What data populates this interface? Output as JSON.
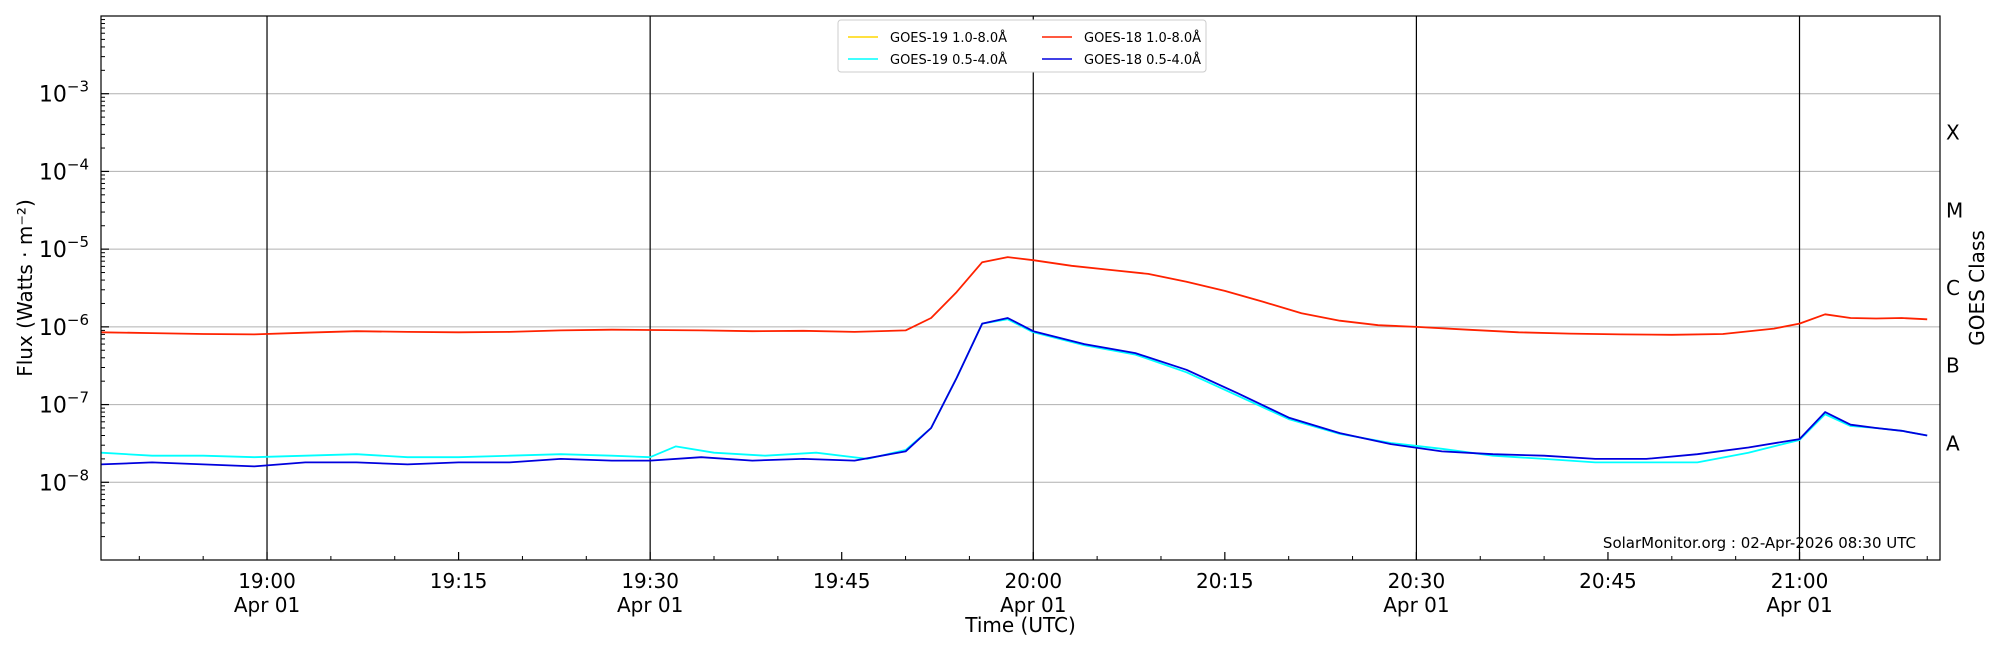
{
  "chart_data": {
    "type": "line",
    "xlabel": "Time (UTC)",
    "ylabel": "Flux (Watts · m⁻²)",
    "ylabel_right": "GOES Class",
    "yscale": "log",
    "xlim": [
      "2026-04-01 18:47",
      "2026-04-01 21:11"
    ],
    "ylim": [
      1e-09,
      0.01
    ],
    "grid": "horizontal at each decade",
    "vertical_lines": [
      "19:00",
      "19:30",
      "20:00",
      "20:30",
      "21:00"
    ],
    "legend_placement": "top-center",
    "credit": "SolarMonitor.org : 02-Apr-2026 08:30 UTC",
    "x_ticks": [
      {
        "time": "19:00",
        "line1": "19:00",
        "line2": "Apr 01"
      },
      {
        "time": "19:15",
        "line1": "19:15",
        "line2": ""
      },
      {
        "time": "19:30",
        "line1": "19:30",
        "line2": "Apr 01"
      },
      {
        "time": "19:45",
        "line1": "19:45",
        "line2": ""
      },
      {
        "time": "20:00",
        "line1": "20:00",
        "line2": "Apr 01"
      },
      {
        "time": "20:15",
        "line1": "20:15",
        "line2": ""
      },
      {
        "time": "20:30",
        "line1": "20:30",
        "line2": "Apr 01"
      },
      {
        "time": "20:45",
        "line1": "20:45",
        "line2": ""
      },
      {
        "time": "21:00",
        "line1": "21:00",
        "line2": "Apr 01"
      }
    ],
    "y_ticks": [
      {
        "value": 1e-08,
        "base": "10",
        "exp": "−8"
      },
      {
        "value": 1e-07,
        "base": "10",
        "exp": "−7"
      },
      {
        "value": 1e-06,
        "base": "10",
        "exp": "−6"
      },
      {
        "value": 1e-05,
        "base": "10",
        "exp": "−5"
      },
      {
        "value": 0.0001,
        "base": "10",
        "exp": "−4"
      },
      {
        "value": 0.001,
        "base": "10",
        "exp": "−3"
      }
    ],
    "goes_classes": [
      {
        "label": "A",
        "value": 3.16e-08
      },
      {
        "label": "B",
        "value": 3.16e-07
      },
      {
        "label": "C",
        "value": 3.16e-06
      },
      {
        "label": "M",
        "value": 3.16e-05
      },
      {
        "label": "X",
        "value": 0.000316
      }
    ],
    "series": [
      {
        "name": "GOES-19 1.0-8.0Å",
        "color": "#ffd700",
        "x": [],
        "y": []
      },
      {
        "name": "GOES-19 0.5-4.0Å",
        "color": "#00ffff",
        "x": [
          "18:47",
          "18:51",
          "18:55",
          "18:59",
          "19:03",
          "19:07",
          "19:11",
          "19:15",
          "19:19",
          "19:23",
          "19:27",
          "19:30",
          "19:32",
          "19:35",
          "19:39",
          "19:43",
          "19:47",
          "19:50",
          "19:52",
          "19:54",
          "19:56",
          "19:58",
          "20:00",
          "20:04",
          "20:08",
          "20:12",
          "20:16",
          "20:20",
          "20:24",
          "20:28",
          "20:32",
          "20:36",
          "20:40",
          "20:44",
          "20:48",
          "20:52",
          "20:56",
          "21:00",
          "21:02",
          "21:04",
          "21:06",
          "21:08",
          "21:10"
        ],
        "y": [
          2.4e-08,
          2.2e-08,
          2.2e-08,
          2.1e-08,
          2.2e-08,
          2.3e-08,
          2.1e-08,
          2.1e-08,
          2.2e-08,
          2.3e-08,
          2.2e-08,
          2.1e-08,
          2.9e-08,
          2.4e-08,
          2.2e-08,
          2.4e-08,
          2e-08,
          2.6e-08,
          5e-08,
          2.2e-07,
          1.1e-06,
          1.25e-06,
          8.5e-07,
          5.8e-07,
          4.4e-07,
          2.6e-07,
          1.3e-07,
          6.5e-08,
          4.2e-08,
          3.2e-08,
          2.7e-08,
          2.2e-08,
          2e-08,
          1.8e-08,
          1.8e-08,
          1.8e-08,
          2.4e-08,
          3.5e-08,
          7.5e-08,
          5.3e-08,
          5e-08,
          4.6e-08,
          4e-08
        ]
      },
      {
        "name": "GOES-18 1.0-8.0Å",
        "color": "#ff2200",
        "x": [
          "18:47",
          "18:51",
          "18:55",
          "18:59",
          "19:03",
          "19:07",
          "19:11",
          "19:15",
          "19:19",
          "19:23",
          "19:27",
          "19:30",
          "19:34",
          "19:38",
          "19:42",
          "19:46",
          "19:50",
          "19:52",
          "19:54",
          "19:56",
          "19:58",
          "20:00",
          "20:03",
          "20:06",
          "20:09",
          "20:12",
          "20:15",
          "20:18",
          "20:21",
          "20:24",
          "20:27",
          "20:30",
          "20:34",
          "20:38",
          "20:42",
          "20:46",
          "20:50",
          "20:54",
          "20:58",
          "21:00",
          "21:02",
          "21:04",
          "21:06",
          "21:08",
          "21:10"
        ],
        "y": [
          8.5e-07,
          8.3e-07,
          8.1e-07,
          8e-07,
          8.4e-07,
          8.8e-07,
          8.6e-07,
          8.5e-07,
          8.6e-07,
          9e-07,
          9.2e-07,
          9.1e-07,
          9e-07,
          8.8e-07,
          8.9e-07,
          8.6e-07,
          9e-07,
          1.3e-06,
          2.8e-06,
          6.8e-06,
          7.9e-06,
          7.2e-06,
          6.1e-06,
          5.4e-06,
          4.8e-06,
          3.8e-06,
          2.9e-06,
          2.1e-06,
          1.5e-06,
          1.2e-06,
          1.05e-06,
          1e-06,
          9.2e-07,
          8.5e-07,
          8.2e-07,
          8e-07,
          7.9e-07,
          8.1e-07,
          9.5e-07,
          1.1e-06,
          1.45e-06,
          1.3e-06,
          1.28e-06,
          1.3e-06,
          1.25e-06
        ]
      },
      {
        "name": "GOES-18 0.5-4.0Å",
        "color": "#0000dd",
        "x": [
          "18:47",
          "18:51",
          "18:55",
          "18:59",
          "19:03",
          "19:07",
          "19:11",
          "19:15",
          "19:19",
          "19:23",
          "19:27",
          "19:30",
          "19:34",
          "19:38",
          "19:42",
          "19:46",
          "19:50",
          "19:52",
          "19:54",
          "19:56",
          "19:58",
          "20:00",
          "20:04",
          "20:08",
          "20:12",
          "20:16",
          "20:20",
          "20:24",
          "20:28",
          "20:32",
          "20:36",
          "20:40",
          "20:44",
          "20:48",
          "20:52",
          "20:56",
          "21:00",
          "21:02",
          "21:04",
          "21:06",
          "21:08",
          "21:10"
        ],
        "y": [
          1.7e-08,
          1.8e-08,
          1.7e-08,
          1.6e-08,
          1.8e-08,
          1.8e-08,
          1.7e-08,
          1.8e-08,
          1.8e-08,
          2e-08,
          1.9e-08,
          1.9e-08,
          2.1e-08,
          1.9e-08,
          2e-08,
          1.9e-08,
          2.5e-08,
          5e-08,
          2.2e-07,
          1.1e-06,
          1.3e-06,
          8.8e-07,
          6e-07,
          4.6e-07,
          2.8e-07,
          1.4e-07,
          6.8e-08,
          4.3e-08,
          3.1e-08,
          2.5e-08,
          2.3e-08,
          2.2e-08,
          2e-08,
          2e-08,
          2.3e-08,
          2.8e-08,
          3.6e-08,
          8e-08,
          5.5e-08,
          5e-08,
          4.6e-08,
          4e-08
        ]
      }
    ]
  }
}
